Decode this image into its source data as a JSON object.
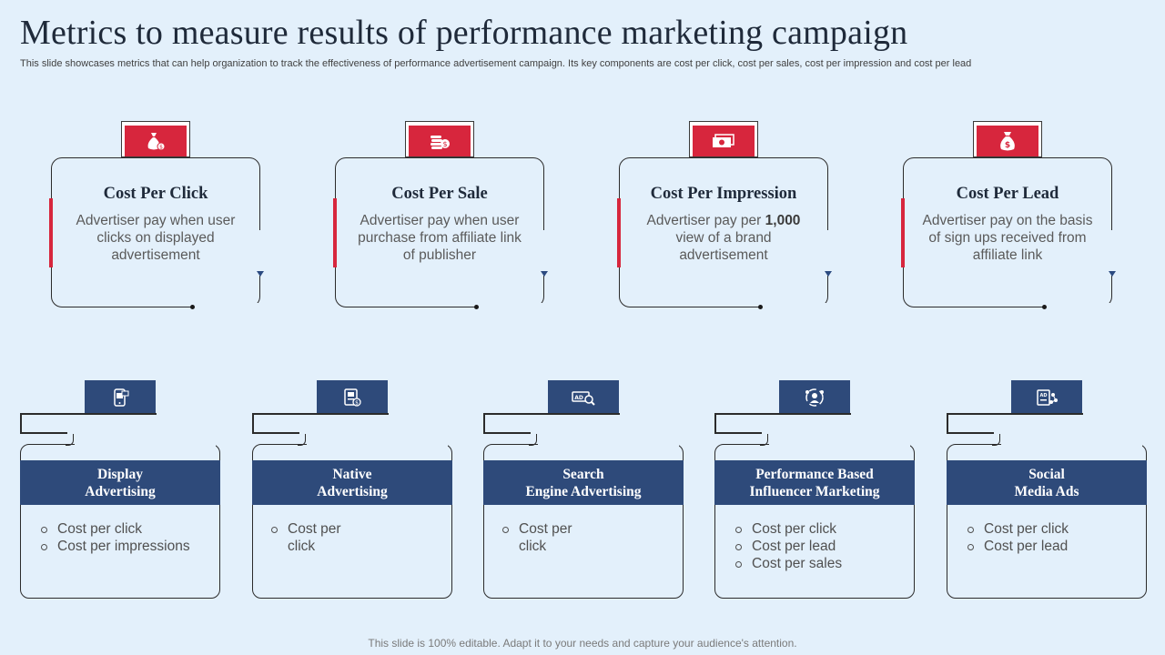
{
  "title": "Metrics to measure results of performance marketing campaign",
  "subtitle": "This slide showcases metrics that can help organization to track the effectiveness of performance advertisement campaign. Its key components are cost per click, cost per sales, cost per impression and cost per lead",
  "colors": {
    "accent_red": "#d7263d",
    "navy": "#2e4a7a",
    "background": "#e3f0fb"
  },
  "metrics": [
    {
      "icon": "money-bag-icon",
      "title": "Cost Per Click",
      "desc_pre": "Advertiser pay when user clicks on displayed advertisement",
      "desc_bold": "",
      "desc_post": ""
    },
    {
      "icon": "coins-stack-icon",
      "title": "Cost Per Sale",
      "desc_pre": "Advertiser pay when user purchase from affiliate link of publisher",
      "desc_bold": "",
      "desc_post": ""
    },
    {
      "icon": "banknotes-icon",
      "title": "Cost Per Impression",
      "desc_pre": "Advertiser pay per ",
      "desc_bold": "1,000",
      "desc_post": " view of a brand advertisement"
    },
    {
      "icon": "dollar-bag-icon",
      "title": "Cost Per Lead",
      "desc_pre": "Advertiser pay on the basis of sign ups received  from affiliate link",
      "desc_bold": "",
      "desc_post": ""
    }
  ],
  "channels": [
    {
      "icon": "mobile-ad-icon",
      "title_line1": "Display",
      "title_line2": "Advertising",
      "bullets": [
        "Cost per click",
        "Cost per impressions"
      ]
    },
    {
      "icon": "native-ad-icon",
      "title_line1": "Native",
      "title_line2": "Advertising",
      "bullets": [
        "Cost per click"
      ]
    },
    {
      "icon": "search-ad-icon",
      "title_line1": "Search",
      "title_line2": "Engine Advertising",
      "bullets": [
        "Cost per click"
      ]
    },
    {
      "icon": "influencer-icon",
      "title_line1": "Performance Based",
      "title_line2": "Influencer Marketing",
      "bullets": [
        "Cost per click",
        "Cost per lead",
        "Cost per sales"
      ]
    },
    {
      "icon": "social-media-icon",
      "title_line1": "Social",
      "title_line2": "Media Ads",
      "bullets": [
        "Cost per click",
        "Cost per lead"
      ]
    }
  ],
  "footer": "This slide is 100% editable. Adapt it to your needs and capture your audience's attention."
}
